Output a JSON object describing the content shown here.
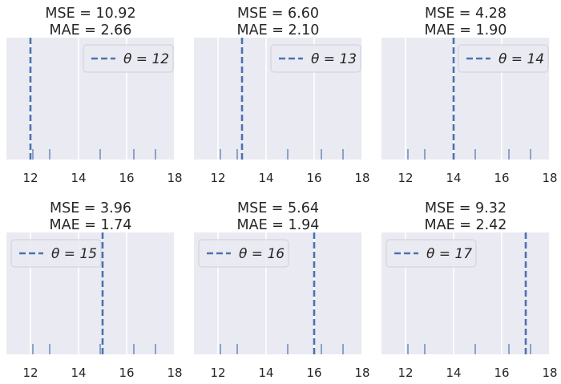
{
  "chart_data": [
    {
      "type": "rug",
      "title_lines": [
        "MSE = 10.92",
        "MAE = 2.66"
      ],
      "theta": 12,
      "legend_label": "θ = 12",
      "legend_position": "top-right"
    },
    {
      "type": "rug",
      "title_lines": [
        "MSE = 6.60",
        "MAE = 2.10"
      ],
      "theta": 13,
      "legend_label": "θ = 13",
      "legend_position": "top-right"
    },
    {
      "type": "rug",
      "title_lines": [
        "MSE = 4.28",
        "MAE = 1.90"
      ],
      "theta": 14,
      "legend_label": "θ = 14",
      "legend_position": "top-right"
    },
    {
      "type": "rug",
      "title_lines": [
        "MSE = 3.96",
        "MAE = 1.74"
      ],
      "theta": 15,
      "legend_label": "θ = 15",
      "legend_position": "top-left"
    },
    {
      "type": "rug",
      "title_lines": [
        "MSE = 5.64",
        "MAE = 1.94"
      ],
      "theta": 16,
      "legend_label": "θ = 16",
      "legend_position": "top-left"
    },
    {
      "type": "rug",
      "title_lines": [
        "MSE = 9.32",
        "MAE = 2.42"
      ],
      "theta": 17,
      "legend_label": "θ = 17",
      "legend_position": "top-left"
    }
  ],
  "shared": {
    "data_points": [
      12.1,
      12.8,
      14.9,
      16.3,
      17.2
    ],
    "xlim": [
      11,
      18
    ],
    "xticks": [
      12,
      14,
      16,
      18
    ],
    "xtick_labels": [
      "12",
      "14",
      "16",
      "18"
    ],
    "grid": true,
    "colors": {
      "line": "#4c72b0",
      "rug": "#4c72b0",
      "axes_bg": "#eaeaf2",
      "grid": "#ffffff",
      "text": "#262626"
    }
  }
}
